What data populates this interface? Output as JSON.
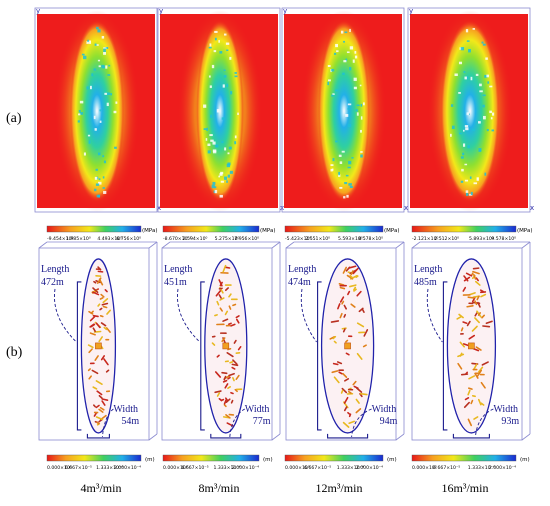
{
  "row_labels": {
    "a": "(a)",
    "b": "(b)"
  },
  "axis_labels": {
    "y": "y",
    "x": "x"
  },
  "colors": {
    "background": "#ee1c1c",
    "ellipse": "#2222aa",
    "label_text": "#1a1a8c",
    "bracket": "#1a1a8c",
    "wireframe": "#8a8ad0"
  },
  "panels": [
    {
      "caption": "4m³/min",
      "stress_unit": "(MPa)",
      "stress_ticks": [
        "-9.454×10⁰",
        "1.985×10⁰",
        "4.493×10⁰",
        "6.756×10⁰"
      ],
      "length_label": "Length",
      "length_value": "472m",
      "width_label": "Width",
      "width_value": "54m",
      "disp_unit": "(m)",
      "disp_ticks": [
        "0.000×10⁰",
        "6.667×10⁻⁵",
        "1.333×10⁻⁴",
        "2.000×10⁻⁴"
      ]
    },
    {
      "caption": "8m³/min",
      "stress_unit": "(MPa)",
      "stress_ticks": [
        "-8.670×10⁻¹",
        "2.594×10⁰",
        "5.275×10⁰",
        "7.956×10⁰"
      ],
      "length_label": "Length",
      "length_value": "451m",
      "width_label": "Width",
      "width_value": "77m",
      "disp_unit": "(m)",
      "disp_ticks": [
        "0.000×10⁰",
        "6.667×10⁻⁵",
        "1.333×10⁻⁴",
        "2.000×10⁻⁴"
      ]
    },
    {
      "caption": "12m³/min",
      "stress_unit": "(MPa)",
      "stress_ticks": [
        "-5.423×10⁰",
        "2.551×10⁰",
        "5.593×10⁰",
        "8.578×10⁰"
      ],
      "length_label": "Length",
      "length_value": "474m",
      "width_label": "Width",
      "width_value": "94m",
      "disp_unit": "(m)",
      "disp_ticks": [
        "0.000×10⁰",
        "6.667×10⁻⁵",
        "1.333×10⁻⁴",
        "2.000×10⁻⁴"
      ]
    },
    {
      "caption": "16m³/min",
      "stress_unit": "(MPa)",
      "stress_ticks": [
        "-2.121×10⁰",
        "2.512×10⁰",
        "5.893×10⁰",
        "9.578×10⁰"
      ],
      "length_label": "Length",
      "length_value": "485m",
      "width_label": "Width",
      "width_value": "93m",
      "disp_unit": "(m)",
      "disp_ticks": [
        "0.000×10⁰",
        "6.667×10⁻⁵",
        "1.333×10⁻⁴",
        "2.000×10⁻⁴"
      ]
    }
  ]
}
